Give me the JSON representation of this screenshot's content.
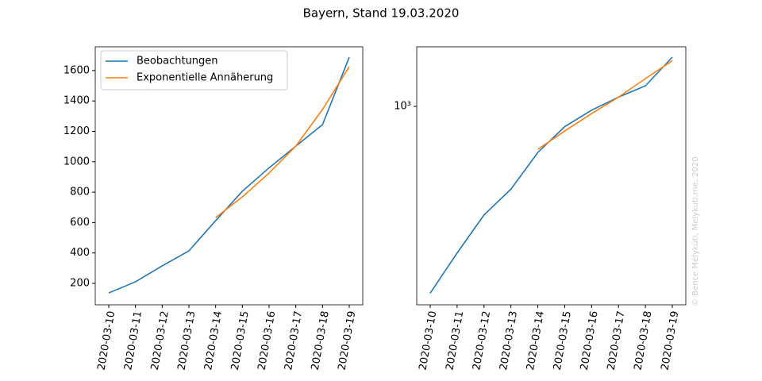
{
  "title": "Bayern, Stand 19.03.2020",
  "annotation": "© Bence Mélykúti, Melykuti.me, 2020",
  "chart_data": [
    {
      "type": "line",
      "categories": [
        "2020-03-10",
        "2020-03-11",
        "2020-03-12",
        "2020-03-13",
        "2020-03-14",
        "2020-03-15",
        "2020-03-16",
        "2020-03-17",
        "2020-03-18",
        "2020-03-19"
      ],
      "series": [
        {
          "name": "Beobachtungen",
          "color": "#1f77b4",
          "values": [
            137,
            210,
            315,
            414,
            612,
            806,
            960,
            1103,
            1244,
            1688
          ]
        },
        {
          "name": "Exponentielle Annäherung",
          "color": "#ff7f0e",
          "values": [
            null,
            null,
            null,
            null,
            633,
            769,
            926,
            1103,
            1344,
            1626
          ]
        }
      ],
      "ylim": [
        59,
        1756
      ],
      "yticks": [
        200,
        400,
        600,
        800,
        1000,
        1200,
        1400,
        1600
      ],
      "legend": "upper left"
    },
    {
      "type": "line",
      "categories": [
        "2020-03-10",
        "2020-03-11",
        "2020-03-12",
        "2020-03-13",
        "2020-03-14",
        "2020-03-15",
        "2020-03-16",
        "2020-03-17",
        "2020-03-18",
        "2020-03-19"
      ],
      "series": [
        {
          "name": "Beobachtungen",
          "color": "#1f77b4",
          "values": [
            137,
            210,
            315,
            414,
            612,
            806,
            960,
            1103,
            1244,
            1688
          ]
        },
        {
          "name": "Exponentielle Annäherung",
          "color": "#ff7f0e",
          "values": [
            null,
            null,
            null,
            null,
            633,
            769,
            926,
            1103,
            1344,
            1626
          ]
        }
      ],
      "ylim": [
        121,
        1884
      ],
      "yticks": [
        {
          "value": 1000,
          "label": "10³"
        }
      ],
      "log_scale": true
    }
  ]
}
